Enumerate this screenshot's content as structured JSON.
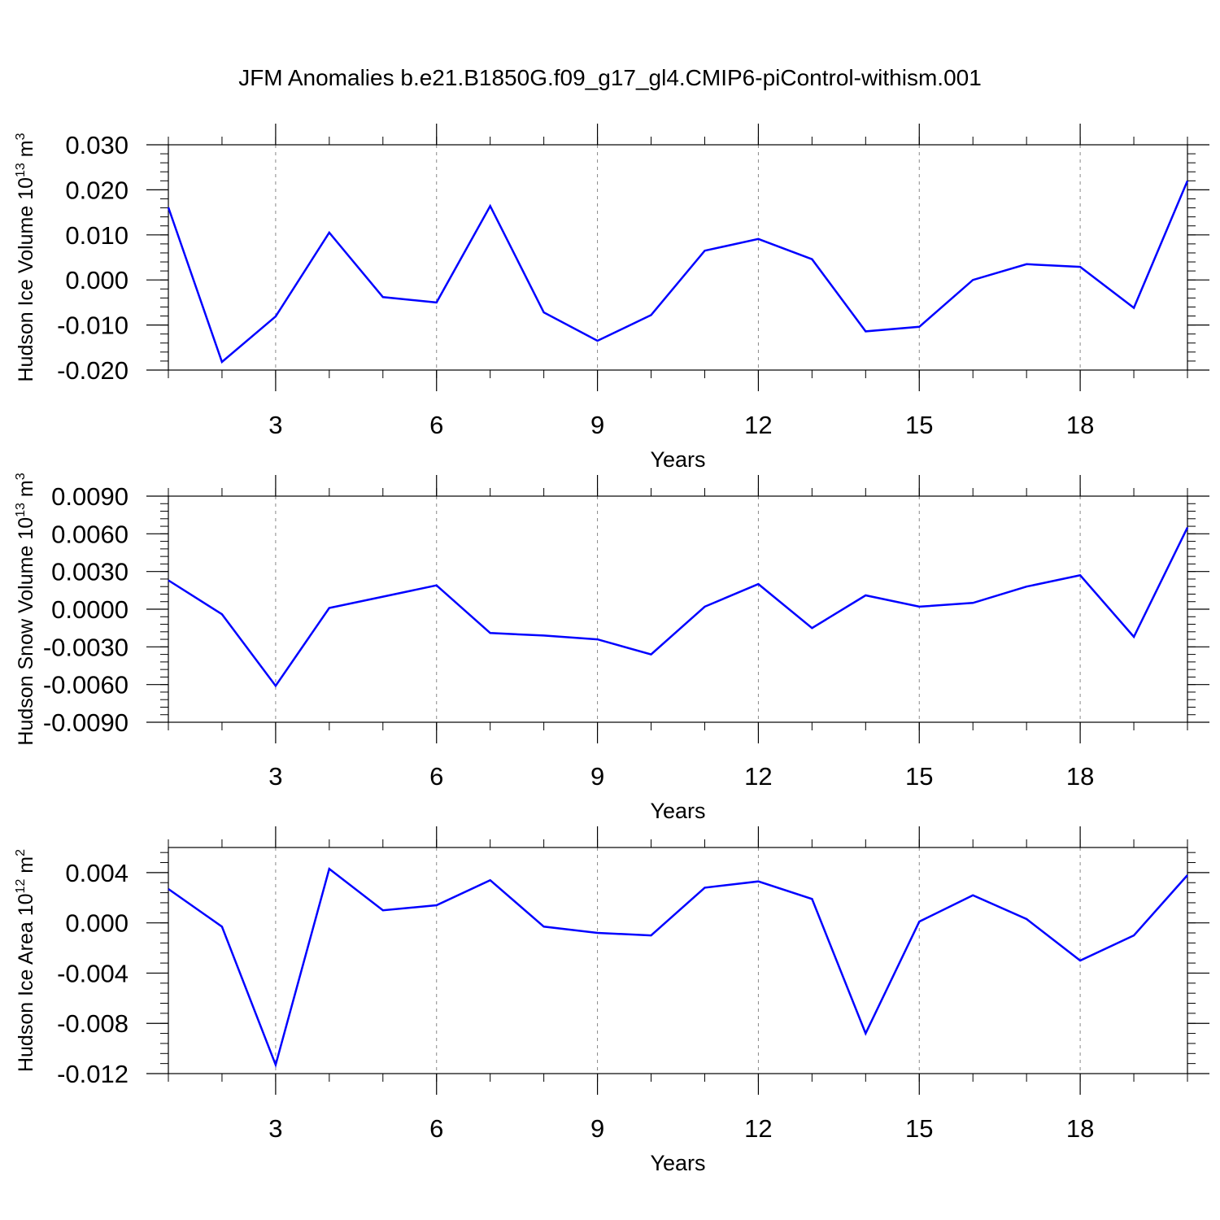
{
  "title": "JFM Anomalies b.e21.B1850G.f09_g17_gl4.CMIP6-piControl-withism.001",
  "colors": {
    "line": "#0000ff",
    "axis": "#000000",
    "grid": "#888888"
  },
  "chart_data": [
    {
      "type": "line",
      "ylabel": "Hudson Ice Volume 10",
      "ylabel_sup": "13",
      "ylabel_unit": " m",
      "ylabel_unit_sup": "3",
      "xlabel": "Years",
      "xlim": [
        1,
        20
      ],
      "ylim": [
        -0.02,
        0.03
      ],
      "x_ticks": [
        3,
        6,
        9,
        12,
        15,
        18
      ],
      "x_tick_labels": [
        "3",
        "6",
        "9",
        "12",
        "15",
        "18"
      ],
      "y_ticks": [
        -0.02,
        -0.01,
        0.0,
        0.01,
        0.02,
        0.03
      ],
      "y_tick_labels": [
        "-0.020",
        "-0.010",
        "0.000",
        "0.010",
        "0.020",
        "0.030"
      ],
      "grid": "vertical dashed at major x ticks",
      "series": [
        {
          "x": [
            1,
            2,
            3,
            4,
            5,
            6,
            7,
            8,
            9,
            10,
            11,
            12,
            13,
            14,
            15,
            16,
            17,
            18,
            19,
            20
          ],
          "values": [
            0.0161,
            -0.0182,
            -0.0081,
            0.0105,
            -0.0038,
            -0.005,
            0.0164,
            -0.0072,
            -0.0135,
            -0.0078,
            0.0065,
            0.0091,
            0.0046,
            -0.0114,
            -0.0104,
            0.0,
            0.0035,
            0.0029,
            -0.0062,
            0.022
          ]
        }
      ]
    },
    {
      "type": "line",
      "ylabel": "Hudson Snow Volume 10",
      "ylabel_sup": "13",
      "ylabel_unit": " m",
      "ylabel_unit_sup": "3",
      "xlabel": "Years",
      "xlim": [
        1,
        20
      ],
      "ylim": [
        -0.009,
        0.009
      ],
      "x_ticks": [
        3,
        6,
        9,
        12,
        15,
        18
      ],
      "x_tick_labels": [
        "3",
        "6",
        "9",
        "12",
        "15",
        "18"
      ],
      "y_ticks": [
        -0.009,
        -0.006,
        -0.003,
        0.0,
        0.003,
        0.006,
        0.009
      ],
      "y_tick_labels": [
        "-0.0090",
        "-0.0060",
        "-0.0030",
        "0.0000",
        "0.0030",
        "0.0060",
        "0.0090"
      ],
      "grid": "vertical dashed at major x ticks",
      "series": [
        {
          "x": [
            1,
            2,
            3,
            4,
            5,
            6,
            7,
            8,
            9,
            10,
            11,
            12,
            13,
            14,
            15,
            16,
            17,
            18,
            19,
            20
          ],
          "values": [
            0.0023,
            -0.0004,
            -0.0061,
            0.0001,
            0.001,
            0.0019,
            -0.0019,
            -0.0021,
            -0.0024,
            -0.0036,
            0.0002,
            0.002,
            -0.0015,
            0.0011,
            0.0002,
            0.0005,
            0.0018,
            0.0027,
            -0.0022,
            0.0065
          ]
        }
      ]
    },
    {
      "type": "line",
      "ylabel": "Hudson Ice Area 10",
      "ylabel_sup": "12",
      "ylabel_unit": " m",
      "ylabel_unit_sup": "2",
      "xlabel": "Years",
      "xlim": [
        1,
        20
      ],
      "ylim": [
        -0.012,
        0.006
      ],
      "x_ticks": [
        3,
        6,
        9,
        12,
        15,
        18
      ],
      "x_tick_labels": [
        "3",
        "6",
        "9",
        "12",
        "15",
        "18"
      ],
      "y_ticks": [
        -0.012,
        -0.008,
        -0.004,
        0.0,
        0.004
      ],
      "y_tick_labels": [
        "-0.012",
        "-0.008",
        "-0.004",
        "0.000",
        "0.004"
      ],
      "grid": "vertical dashed at major x ticks",
      "series": [
        {
          "x": [
            1,
            2,
            3,
            4,
            5,
            6,
            7,
            8,
            9,
            10,
            11,
            12,
            13,
            14,
            15,
            16,
            17,
            18,
            19,
            20
          ],
          "values": [
            0.0027,
            -0.0003,
            -0.0113,
            0.0043,
            0.001,
            0.0014,
            0.0034,
            -0.0003,
            -0.0008,
            -0.001,
            0.0028,
            0.0033,
            0.0019,
            -0.0088,
            0.0001,
            0.0022,
            0.0003,
            -0.003,
            -0.001,
            0.0038
          ]
        }
      ]
    }
  ]
}
